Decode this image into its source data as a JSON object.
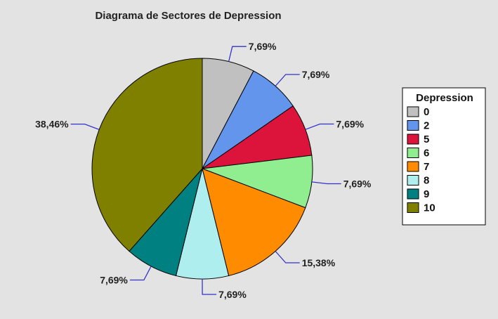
{
  "chart_data": {
    "type": "pie",
    "title": "Diagrama de Sectores de Depression",
    "legend_title": "Depression",
    "legend_position": "right",
    "slices": [
      {
        "category": "0",
        "percent": 7.69,
        "label": "7,69%",
        "color": "#c0c0c0"
      },
      {
        "category": "2",
        "percent": 7.69,
        "label": "7,69%",
        "color": "#6495ed"
      },
      {
        "category": "5",
        "percent": 7.69,
        "label": "7,69%",
        "color": "#dc143c"
      },
      {
        "category": "6",
        "percent": 7.69,
        "label": "7,69%",
        "color": "#90ee90"
      },
      {
        "category": "7",
        "percent": 15.38,
        "label": "15,38%",
        "color": "#ff8c00"
      },
      {
        "category": "8",
        "percent": 7.69,
        "label": "7,69%",
        "color": "#afeeee"
      },
      {
        "category": "9",
        "percent": 7.69,
        "label": "7,69%",
        "color": "#008080"
      },
      {
        "category": "10",
        "percent": 38.46,
        "label": "38,46%",
        "color": "#808000"
      }
    ],
    "label_line_color": "#3333cc"
  }
}
